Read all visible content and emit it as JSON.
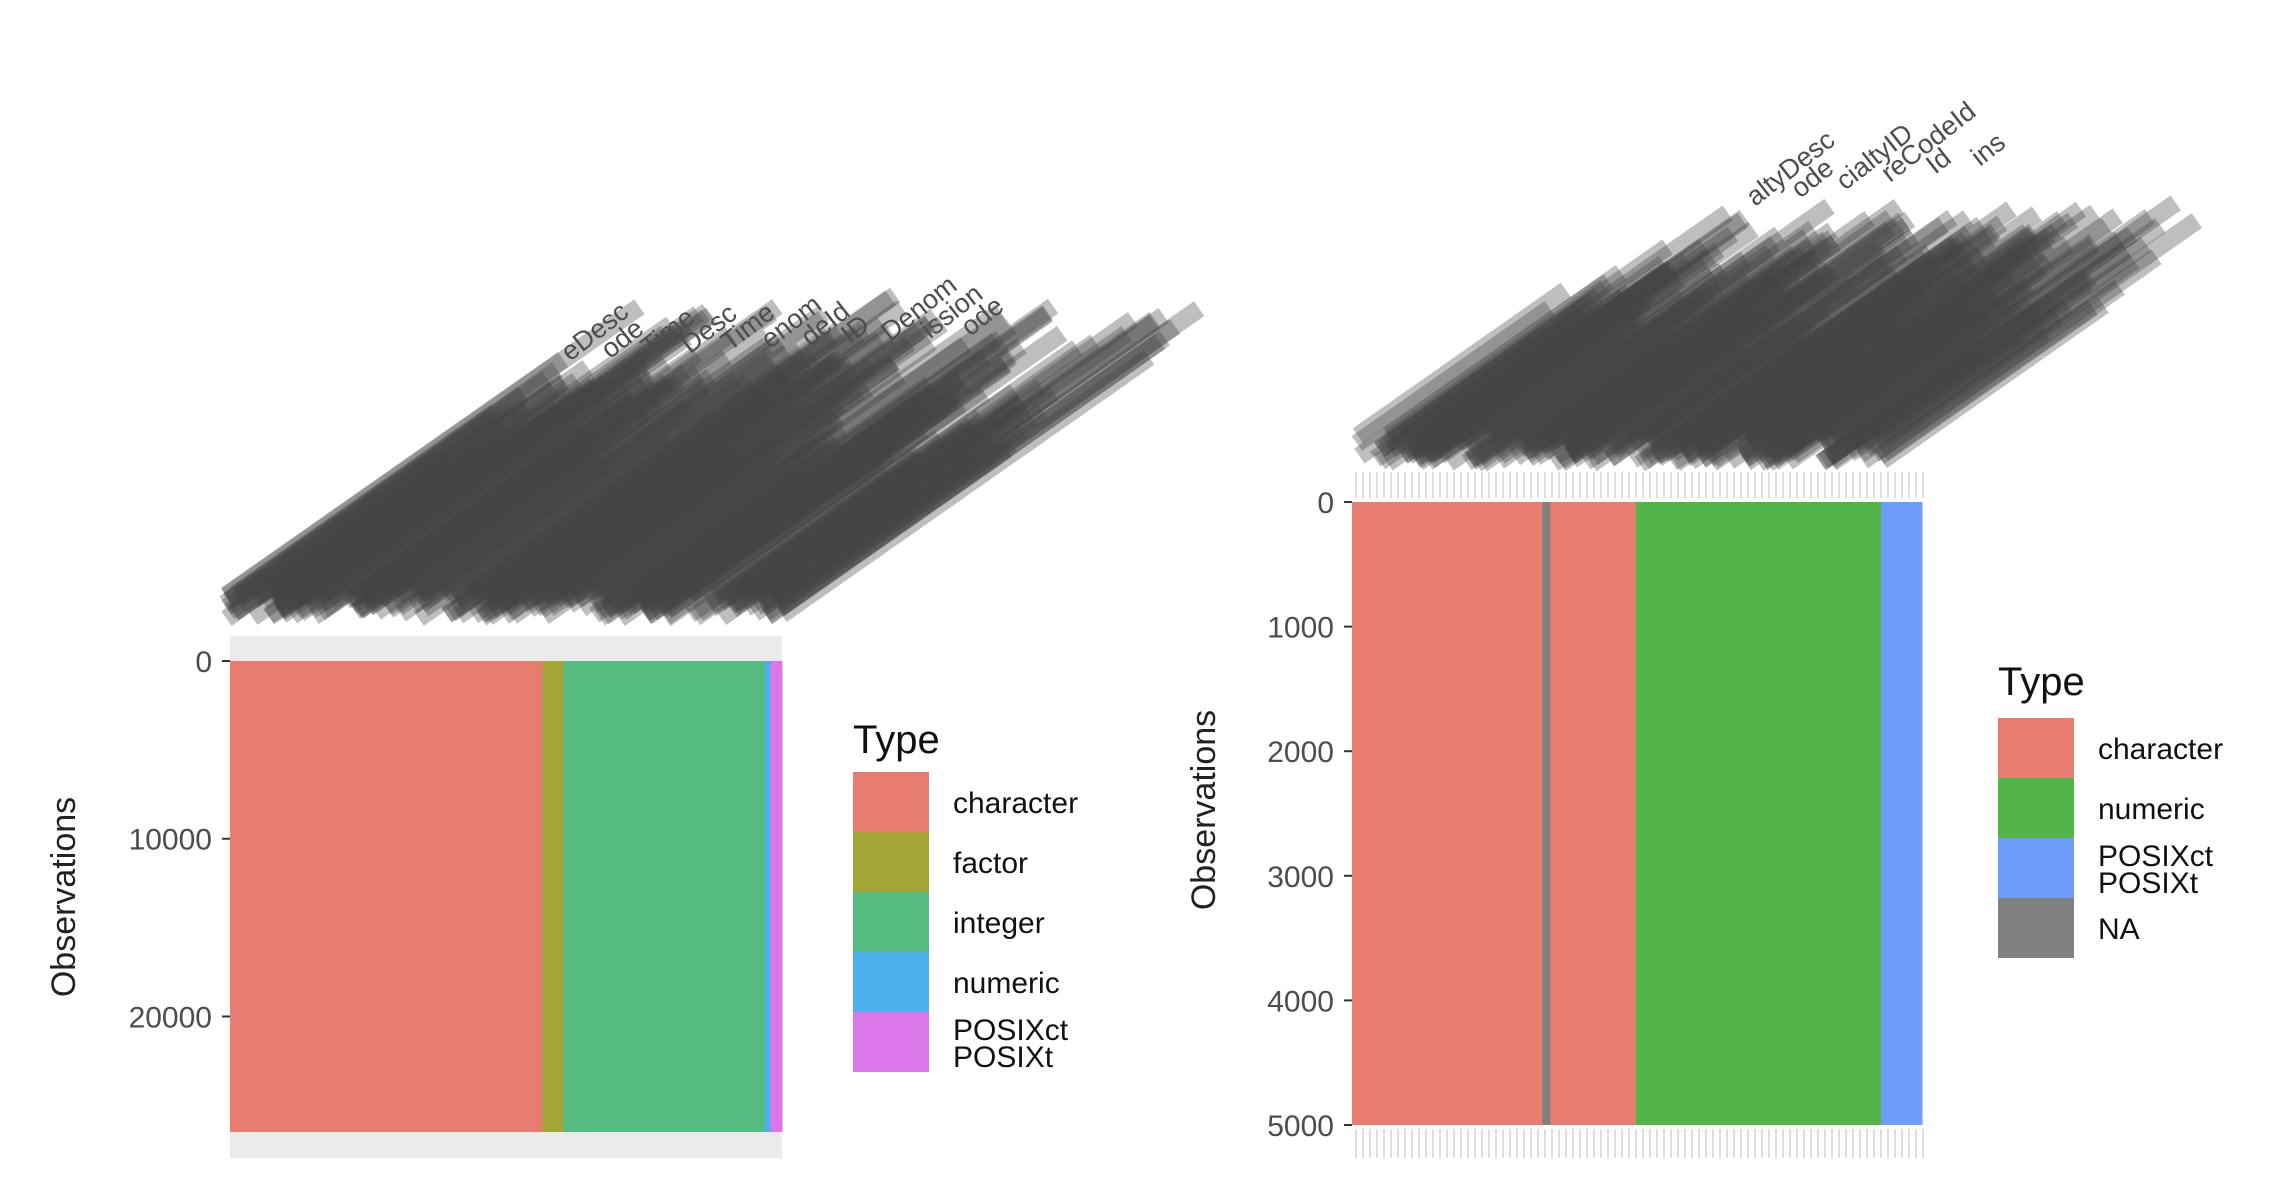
{
  "chart_data": [
    {
      "type": "heatmap",
      "title": "",
      "xlabel": "",
      "ylabel": "Observations",
      "ylim": [
        0,
        26500
      ],
      "yticks": [
        0,
        10000,
        20000
      ],
      "xtick_labels_visible": [
        "eDesc",
        "ode",
        "Time",
        "Desc",
        "Time",
        "enom",
        "deId",
        "ID",
        "Denom",
        "ission",
        "ode"
      ],
      "legend": {
        "title": "Type",
        "position": "right",
        "entries": [
          {
            "label": "character",
            "color": "#E77C70"
          },
          {
            "label": "factor",
            "color": "#A3A534"
          },
          {
            "label": "integer",
            "color": "#55BB81"
          },
          {
            "label": "numeric",
            "color": "#4AB1EC"
          },
          {
            "label": "POSIXct\nPOSIXt",
            "color": "#DB77EB"
          }
        ]
      },
      "columns": [
        {
          "type": "character",
          "share": 0.566
        },
        {
          "type": "factor",
          "share": 0.038
        },
        {
          "type": "integer",
          "share": 0.365
        },
        {
          "type": "numeric",
          "share": 0.01
        },
        {
          "type": "POSIXct\nPOSIXt",
          "share": 0.021
        }
      ]
    },
    {
      "type": "heatmap",
      "title": "",
      "xlabel": "",
      "ylabel": "Observations",
      "ylim": [
        0,
        5000
      ],
      "yticks": [
        0,
        1000,
        2000,
        3000,
        4000,
        5000
      ],
      "xtick_labels_visible": [
        "altyDesc",
        "ode",
        "cialtyID",
        "reCodeId",
        "Id",
        "ins"
      ],
      "legend": {
        "title": "Type",
        "position": "right",
        "entries": [
          {
            "label": "character",
            "color": "#E77C70"
          },
          {
            "label": "numeric",
            "color": "#52B549"
          },
          {
            "label": "POSIXct\nPOSIXt",
            "color": "#6D9DF8"
          },
          {
            "label": "NA",
            "color": "#808080"
          }
        ]
      },
      "columns": [
        {
          "type": "character",
          "share": 0.334
        },
        {
          "type": "NA",
          "share": 0.014
        },
        {
          "type": "character",
          "share": 0.15
        },
        {
          "type": "numeric",
          "share": 0.43
        },
        {
          "type": "POSIXct\nPOSIXt",
          "share": 0.072
        }
      ]
    }
  ]
}
